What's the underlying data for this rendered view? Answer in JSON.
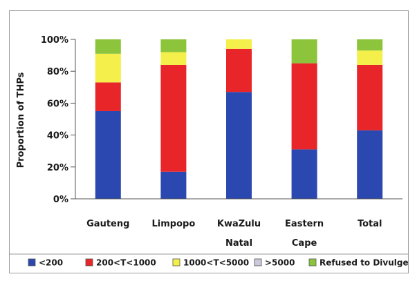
{
  "chart_data": {
    "type": "bar",
    "stacked": true,
    "title": "",
    "xlabel": "",
    "ylabel": "Proportion of THPs",
    "ylim": [
      0,
      100
    ],
    "yticks": [
      "0%",
      "20%",
      "40%",
      "60%",
      "80%",
      "100%"
    ],
    "grid": false,
    "legend_position": "bottom",
    "categories": [
      [
        "Gauteng"
      ],
      [
        "Limpopo"
      ],
      [
        "KwaZulu",
        "Natal"
      ],
      [
        "Eastern",
        "Cape"
      ],
      [
        "Total"
      ]
    ],
    "series": [
      {
        "name": "<200",
        "color": "#2b48b0",
        "values": [
          55,
          17,
          67,
          31,
          43
        ]
      },
      {
        "name": "200<T<1000",
        "color": "#e8262a",
        "values": [
          18,
          67,
          27,
          54,
          41
        ]
      },
      {
        "name": "1000<T<5000",
        "color": "#f4ef4a",
        "values": [
          18,
          8,
          6,
          0,
          9
        ]
      },
      {
        "name": ">5000",
        "color": "#c9c9d9",
        "values": [
          0,
          0,
          0,
          0,
          0
        ]
      },
      {
        "name": "Refused to Divulge",
        "color": "#8cc43c",
        "values": [
          9,
          8,
          0,
          15,
          7
        ]
      }
    ]
  }
}
